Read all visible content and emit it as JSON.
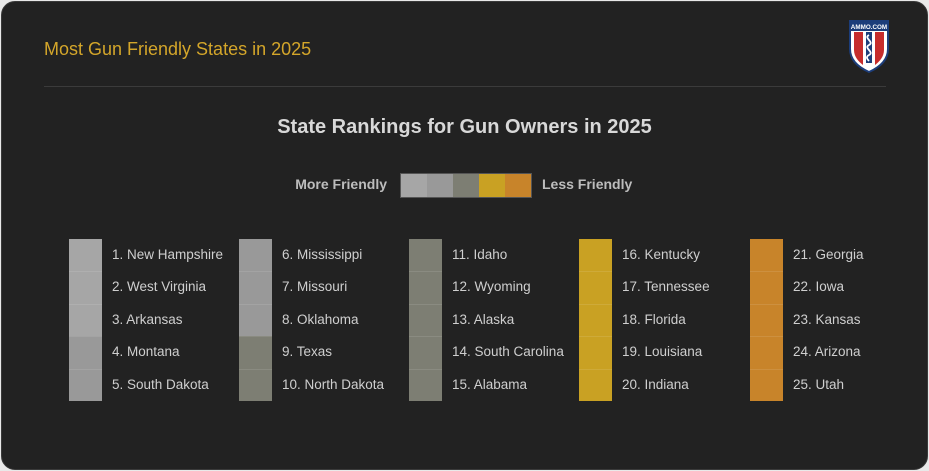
{
  "header": {
    "title": "Most Gun Friendly States in 2025",
    "logo_text": "AMMO.COM"
  },
  "chart_data": {
    "type": "table",
    "title": "State Rankings for Gun Owners in 2025",
    "legend": {
      "left_label": "More Friendly",
      "right_label": "Less Friendly",
      "scale_colors": [
        "#a6a6a6",
        "#999999",
        "#7d7e73",
        "#c9a123",
        "#c8842a"
      ]
    },
    "rankings": [
      {
        "rank": 1,
        "state": "New Hampshire",
        "label": "1. New Hampshire",
        "color": "#a6a6a6"
      },
      {
        "rank": 2,
        "state": "West Virginia",
        "label": "2. West Virginia",
        "color": "#a6a6a6"
      },
      {
        "rank": 3,
        "state": "Arkansas",
        "label": "3. Arkansas",
        "color": "#a6a6a6"
      },
      {
        "rank": 4,
        "state": "Montana",
        "label": "4. Montana",
        "color": "#999999"
      },
      {
        "rank": 5,
        "state": "South Dakota",
        "label": "5. South Dakota",
        "color": "#999999"
      },
      {
        "rank": 6,
        "state": "Mississippi",
        "label": "6. Mississippi",
        "color": "#999999"
      },
      {
        "rank": 7,
        "state": "Missouri",
        "label": "7. Missouri",
        "color": "#999999"
      },
      {
        "rank": 8,
        "state": "Oklahoma",
        "label": "8. Oklahoma",
        "color": "#999999"
      },
      {
        "rank": 9,
        "state": "Texas",
        "label": "9. Texas",
        "color": "#7d7e73"
      },
      {
        "rank": 10,
        "state": "North Dakota",
        "label": "10. North Dakota",
        "color": "#7d7e73"
      },
      {
        "rank": 11,
        "state": "Idaho",
        "label": "11. Idaho",
        "color": "#7d7e73"
      },
      {
        "rank": 12,
        "state": "Wyoming",
        "label": "12. Wyoming",
        "color": "#7d7e73"
      },
      {
        "rank": 13,
        "state": "Alaska",
        "label": "13. Alaska",
        "color": "#7d7e73"
      },
      {
        "rank": 14,
        "state": "South Carolina",
        "label": "14. South Carolina",
        "color": "#7d7e73"
      },
      {
        "rank": 15,
        "state": "Alabama",
        "label": "15. Alabama",
        "color": "#7d7e73"
      },
      {
        "rank": 16,
        "state": "Kentucky",
        "label": "16. Kentucky",
        "color": "#c9a123"
      },
      {
        "rank": 17,
        "state": "Tennessee",
        "label": "17. Tennessee",
        "color": "#c9a123"
      },
      {
        "rank": 18,
        "state": "Florida",
        "label": "18. Florida",
        "color": "#c9a123"
      },
      {
        "rank": 19,
        "state": "Louisiana",
        "label": "19. Louisiana",
        "color": "#c9a123"
      },
      {
        "rank": 20,
        "state": "Indiana",
        "label": "20. Indiana",
        "color": "#c9a123"
      },
      {
        "rank": 21,
        "state": "Georgia",
        "label": "21. Georgia",
        "color": "#c8842a"
      },
      {
        "rank": 22,
        "state": "Iowa",
        "label": "22. Iowa",
        "color": "#c8842a"
      },
      {
        "rank": 23,
        "state": "Kansas",
        "label": "23. Kansas",
        "color": "#c8842a"
      },
      {
        "rank": 24,
        "state": "Arizona",
        "label": "24. Arizona",
        "color": "#c8842a"
      },
      {
        "rank": 25,
        "state": "Utah",
        "label": "25. Utah",
        "color": "#c8842a"
      }
    ]
  }
}
